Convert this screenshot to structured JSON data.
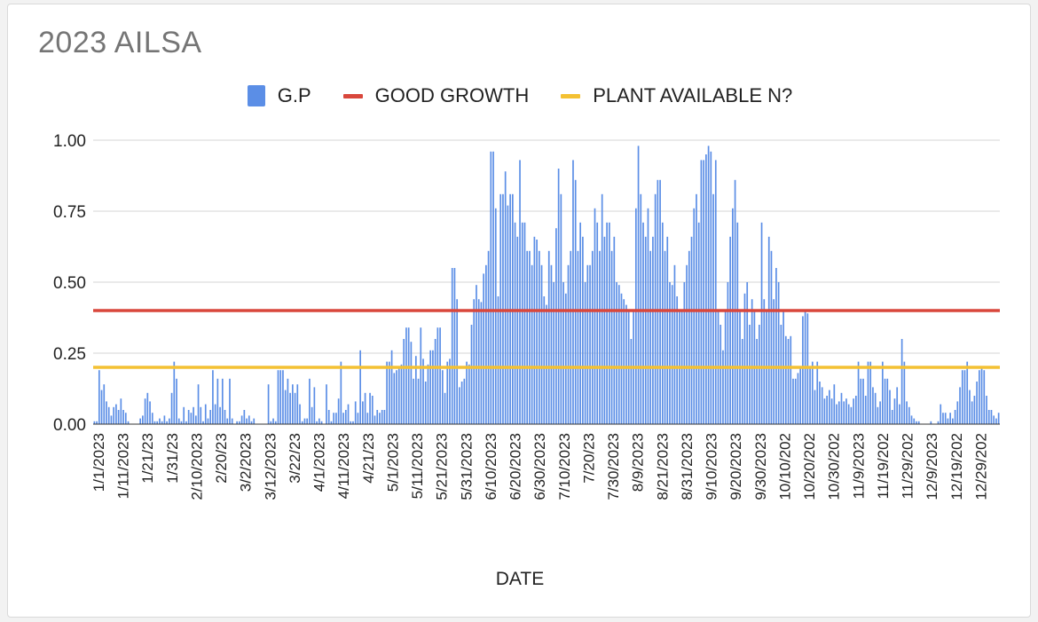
{
  "chart_data": {
    "type": "bar",
    "title": "2023 AILSA",
    "xlabel": "DATE",
    "ylabel": "",
    "ylim": [
      0,
      1
    ],
    "yticks": [
      "0.00",
      "0.25",
      "0.50",
      "0.75",
      "1.00"
    ],
    "grid": true,
    "legend_position": "top",
    "x_range": [
      "1/1/2023",
      "12/31/2023"
    ],
    "xtick_labels": [
      "1/1/2023",
      "1/11/2023",
      "1/21/23",
      "1/31/23",
      "2/10/2023",
      "2/20/23",
      "3/2/2023",
      "3/12/2023",
      "3/22/23",
      "4/1/2023",
      "4/11/2023",
      "4/21/23",
      "5/1/2023",
      "5/11/2023",
      "5/21/2023",
      "5/31/2023",
      "6/10/2023",
      "6/20/2023",
      "6/30/2023",
      "7/10/2023",
      "7/20/23",
      "7/30/2023",
      "8/9/2023",
      "8/21/2023",
      "8/31/2023",
      "9/10/2023",
      "9/20/2023",
      "9/30/2023",
      "10/10/202",
      "10/20/202",
      "10/30/202",
      "11/9/2023",
      "11/19/202",
      "11/29/202",
      "12/9/2023",
      "12/19/202",
      "12/29/202"
    ],
    "series": [
      {
        "name": "G.P",
        "kind": "bar",
        "color": "#5b8ee6"
      },
      {
        "name": "GOOD GROWTH",
        "kind": "line",
        "value": 0.4,
        "color": "#d9473c"
      },
      {
        "name": "PLANT AVAILABLE N?",
        "kind": "line",
        "value": 0.2,
        "color": "#f4c133"
      }
    ],
    "gp_values": [
      0.01,
      0.01,
      0.19,
      0.12,
      0.14,
      0.08,
      0.06,
      0.03,
      0.06,
      0.07,
      0.05,
      0.09,
      0.05,
      0.04,
      0.01,
      0.0,
      0.0,
      0.0,
      0.0,
      0.02,
      0.03,
      0.09,
      0.11,
      0.08,
      0.04,
      0.01,
      0.01,
      0.02,
      0.01,
      0.03,
      0.01,
      0.02,
      0.11,
      0.22,
      0.16,
      0.02,
      0.01,
      0.06,
      0.01,
      0.05,
      0.04,
      0.06,
      0.03,
      0.14,
      0.06,
      0.01,
      0.07,
      0.02,
      0.05,
      0.19,
      0.07,
      0.16,
      0.06,
      0.16,
      0.05,
      0.02,
      0.16,
      0.02,
      0.0,
      0.01,
      0.01,
      0.03,
      0.05,
      0.02,
      0.03,
      0.01,
      0.02,
      0.0,
      0.0,
      0.0,
      0.0,
      0.0,
      0.14,
      0.01,
      0.02,
      0.01,
      0.19,
      0.19,
      0.19,
      0.12,
      0.16,
      0.11,
      0.14,
      0.11,
      0.14,
      0.07,
      0.01,
      0.02,
      0.02,
      0.16,
      0.06,
      0.13,
      0.01,
      0.02,
      0.01,
      0.0,
      0.14,
      0.05,
      0.01,
      0.04,
      0.04,
      0.09,
      0.22,
      0.04,
      0.05,
      0.07,
      0.01,
      0.01,
      0.08,
      0.04,
      0.26,
      0.08,
      0.11,
      0.04,
      0.11,
      0.1,
      0.03,
      0.05,
      0.04,
      0.05,
      0.05,
      0.22,
      0.22,
      0.26,
      0.18,
      0.19,
      0.2,
      0.21,
      0.3,
      0.34,
      0.34,
      0.29,
      0.16,
      0.24,
      0.16,
      0.34,
      0.23,
      0.15,
      0.21,
      0.26,
      0.26,
      0.3,
      0.34,
      0.34,
      0.19,
      0.11,
      0.22,
      0.23,
      0.55,
      0.55,
      0.44,
      0.13,
      0.15,
      0.16,
      0.22,
      0.21,
      0.35,
      0.44,
      0.49,
      0.44,
      0.43,
      0.53,
      0.56,
      0.61,
      0.96,
      0.96,
      0.76,
      0.45,
      0.81,
      0.81,
      0.89,
      0.77,
      0.81,
      0.81,
      0.71,
      0.66,
      0.93,
      0.71,
      0.71,
      0.61,
      0.61,
      0.56,
      0.66,
      0.65,
      0.61,
      0.56,
      0.45,
      0.42,
      0.61,
      0.56,
      0.5,
      0.69,
      0.9,
      0.81,
      0.5,
      0.46,
      0.56,
      0.61,
      0.93,
      0.86,
      0.61,
      0.71,
      0.66,
      0.5,
      0.56,
      0.56,
      0.61,
      0.76,
      0.71,
      0.61,
      0.81,
      0.66,
      0.71,
      0.71,
      0.61,
      0.66,
      0.5,
      0.49,
      0.46,
      0.44,
      0.42,
      0.4,
      0.3,
      0.4,
      0.76,
      0.98,
      0.81,
      0.71,
      0.66,
      0.76,
      0.61,
      0.66,
      0.81,
      0.86,
      0.86,
      0.71,
      0.61,
      0.66,
      0.5,
      0.49,
      0.56,
      0.45,
      0.4,
      0.4,
      0.5,
      0.56,
      0.61,
      0.66,
      0.76,
      0.81,
      0.71,
      0.93,
      0.93,
      0.95,
      0.98,
      0.96,
      0.81,
      0.93,
      0.4,
      0.35,
      0.26,
      0.4,
      0.5,
      0.66,
      0.76,
      0.86,
      0.71,
      0.4,
      0.3,
      0.46,
      0.5,
      0.35,
      0.44,
      0.4,
      0.3,
      0.35,
      0.71,
      0.44,
      0.4,
      0.66,
      0.61,
      0.44,
      0.55,
      0.5,
      0.35,
      0.4,
      0.31,
      0.3,
      0.31,
      0.16,
      0.16,
      0.18,
      0.2,
      0.38,
      0.4,
      0.39,
      0.2,
      0.22,
      0.12,
      0.22,
      0.15,
      0.13,
      0.09,
      0.1,
      0.12,
      0.09,
      0.14,
      0.07,
      0.08,
      0.11,
      0.08,
      0.09,
      0.07,
      0.06,
      0.09,
      0.1,
      0.22,
      0.16,
      0.16,
      0.1,
      0.22,
      0.22,
      0.13,
      0.11,
      0.06,
      0.08,
      0.22,
      0.16,
      0.16,
      0.12,
      0.05,
      0.09,
      0.13,
      0.07,
      0.3,
      0.22,
      0.08,
      0.06,
      0.03,
      0.02,
      0.01,
      0.01,
      0.0,
      0.0,
      0.0,
      0.0,
      0.01,
      0.0,
      0.0,
      0.01,
      0.07,
      0.04,
      0.04,
      0.02,
      0.04,
      0.02,
      0.05,
      0.08,
      0.13,
      0.19,
      0.19,
      0.22,
      0.12,
      0.08,
      0.1,
      0.15,
      0.19,
      0.2,
      0.19,
      0.1,
      0.05,
      0.05,
      0.03,
      0.02,
      0.04
    ]
  },
  "colors": {
    "gp_bar": "#5b8ee6",
    "good_growth": "#d9473c",
    "plant_available": "#f4c133",
    "grid": "#d6d6d6",
    "title": "#757575"
  }
}
